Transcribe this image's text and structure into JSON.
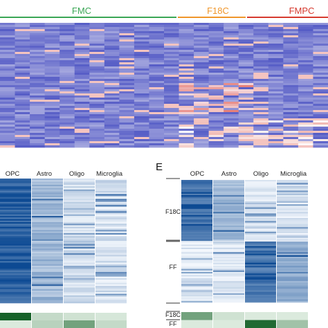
{
  "colors": {
    "fmc": "#3aa655",
    "f18c": "#f0962a",
    "fmpc": "#d63a2f",
    "heat_blue": "#4f56c4",
    "heat_red": "#e0564a",
    "blues_dark": "#0d4a93",
    "greens_dark": "#0a5a1e"
  },
  "chart_data": [
    {
      "type": "heatmap",
      "colormap": "blue-white-red",
      "groups": [
        {
          "label": "FMC",
          "color": "#3aa655"
        },
        {
          "label": "F18C",
          "color": "#f0962a"
        },
        {
          "label": "FMPC",
          "color": "#d63a2f"
        }
      ]
    },
    {
      "type": "heatmap",
      "colormap": "Blues",
      "columns": [
        "OPC",
        "Astro",
        "Oligo",
        "Microglia"
      ],
      "mean_intensity": [
        0.85,
        0.35,
        0.15,
        0.12
      ],
      "bottom_band_colormap": "Greens"
    },
    {
      "type": "heatmap",
      "panel_label": "E",
      "colormap": "Blues",
      "columns": [
        "OPC",
        "Astro",
        "Oligo",
        "Microglia"
      ],
      "row_groups": [
        "F18C",
        "FF"
      ],
      "bottom_row_groups": [
        "F18C",
        "FF"
      ],
      "bottom_band_colormap": "Greens"
    }
  ]
}
